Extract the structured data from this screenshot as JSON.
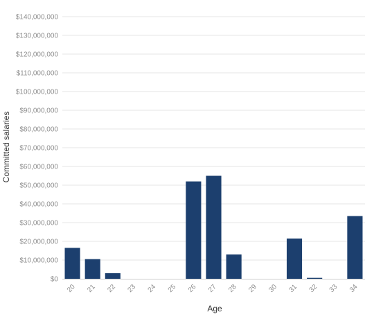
{
  "chart_data": {
    "type": "bar",
    "xlabel": "Age",
    "ylabel": "Committed salaries",
    "categories": [
      "20",
      "21",
      "22",
      "23",
      "24",
      "25",
      "26",
      "27",
      "28",
      "29",
      "30",
      "31",
      "32",
      "33",
      "34"
    ],
    "values": [
      16500000,
      10500000,
      3000000,
      0,
      0,
      0,
      52000000,
      55000000,
      13000000,
      0,
      0,
      21500000,
      500000,
      0,
      33500000
    ],
    "ylim": [
      0,
      140000000
    ],
    "yticks": [
      "$0",
      "$10,000,000",
      "$20,000,000",
      "$30,000,000",
      "$40,000,000",
      "$50,000,000",
      "$60,000,000",
      "$70,000,000",
      "$80,000,000",
      "$90,000,000",
      "$100,000,000",
      "$110,000,000",
      "$120,000,000",
      "$130,000,000",
      "$140,000,000"
    ],
    "ytick_values": [
      0,
      10000000,
      20000000,
      30000000,
      40000000,
      50000000,
      60000000,
      70000000,
      80000000,
      90000000,
      100000000,
      110000000,
      120000000,
      130000000,
      140000000
    ],
    "grid": true,
    "legend": false,
    "bar_color": "#1c3f6e"
  }
}
